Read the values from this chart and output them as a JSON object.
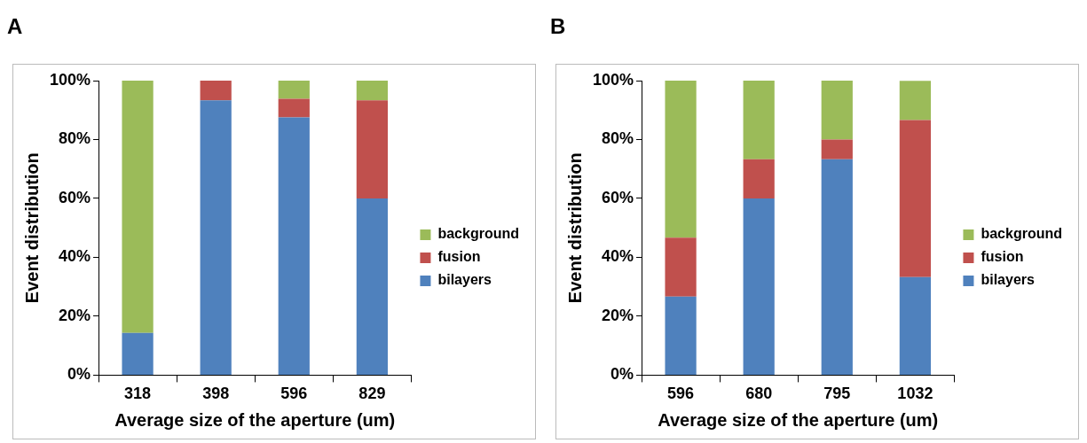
{
  "chart_data": [
    {
      "type": "bar",
      "title": "A",
      "xlabel": "Average size of the aperture (um)",
      "ylabel": "Event distribution",
      "categories": [
        "318",
        "398",
        "596",
        "829"
      ],
      "stacked": true,
      "legend": "right",
      "grid": false,
      "ylim": [
        0,
        100
      ],
      "yticks": [
        {
          "value": 0,
          "label": "0%"
        },
        {
          "value": 20,
          "label": "20%"
        },
        {
          "value": 40,
          "label": "40%"
        },
        {
          "value": 60,
          "label": "60%"
        },
        {
          "value": 80,
          "label": "80%"
        },
        {
          "value": 100,
          "label": "100%"
        }
      ],
      "series": [
        {
          "name": "bilayers",
          "color": "#4f81bd",
          "values": [
            14.3,
            93.3,
            87.5,
            60.0
          ]
        },
        {
          "name": "fusion",
          "color": "#c0504d",
          "values": [
            0,
            6.7,
            6.3,
            33.3
          ]
        },
        {
          "name": "background",
          "color": "#9bbb59",
          "values": [
            85.7,
            0,
            6.2,
            6.7
          ]
        }
      ]
    },
    {
      "type": "bar",
      "title": "B",
      "xlabel": "Average size of the aperture (um)",
      "ylabel": "Event distribution",
      "categories": [
        "596",
        "680",
        "795",
        "1032"
      ],
      "stacked": true,
      "legend": "right",
      "grid": false,
      "ylim": [
        0,
        100
      ],
      "yticks": [
        {
          "value": 0,
          "label": "0%"
        },
        {
          "value": 20,
          "label": "20%"
        },
        {
          "value": 40,
          "label": "40%"
        },
        {
          "value": 60,
          "label": "60%"
        },
        {
          "value": 80,
          "label": "80%"
        },
        {
          "value": 100,
          "label": "100%"
        }
      ],
      "series": [
        {
          "name": "bilayers",
          "color": "#4f81bd",
          "values": [
            26.7,
            60.0,
            73.3,
            33.3
          ]
        },
        {
          "name": "fusion",
          "color": "#c0504d",
          "values": [
            20.0,
            13.3,
            6.7,
            53.3
          ]
        },
        {
          "name": "background",
          "color": "#9bbb59",
          "values": [
            53.3,
            26.7,
            20.0,
            13.3
          ]
        }
      ]
    }
  ]
}
